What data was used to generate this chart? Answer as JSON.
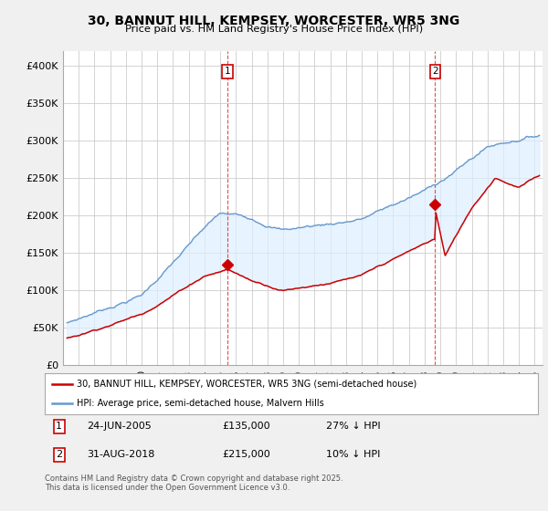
{
  "title_line1": "30, BANNUT HILL, KEMPSEY, WORCESTER, WR5 3NG",
  "title_line2": "Price paid vs. HM Land Registry's House Price Index (HPI)",
  "ylabel_ticks": [
    "£0",
    "£50K",
    "£100K",
    "£150K",
    "£200K",
    "£250K",
    "£300K",
    "£350K",
    "£400K"
  ],
  "ytick_vals": [
    0,
    50000,
    100000,
    150000,
    200000,
    250000,
    300000,
    350000,
    400000
  ],
  "ylim": [
    0,
    420000
  ],
  "xlim_start": 1995.3,
  "xlim_end": 2025.5,
  "red_color": "#cc0000",
  "blue_color": "#6699cc",
  "fill_color": "#ddeeff",
  "marker1_x": 2005.48,
  "marker1_y": 135000,
  "marker2_x": 2018.67,
  "marker2_y": 215000,
  "vline1_x": 2005.48,
  "vline2_x": 2018.67,
  "legend_label_red": "30, BANNUT HILL, KEMPSEY, WORCESTER, WR5 3NG (semi-detached house)",
  "legend_label_blue": "HPI: Average price, semi-detached house, Malvern Hills",
  "footer": "Contains HM Land Registry data © Crown copyright and database right 2025.\nThis data is licensed under the Open Government Licence v3.0.",
  "bg_color": "#f0f0f0",
  "plot_bg_color": "#ffffff"
}
